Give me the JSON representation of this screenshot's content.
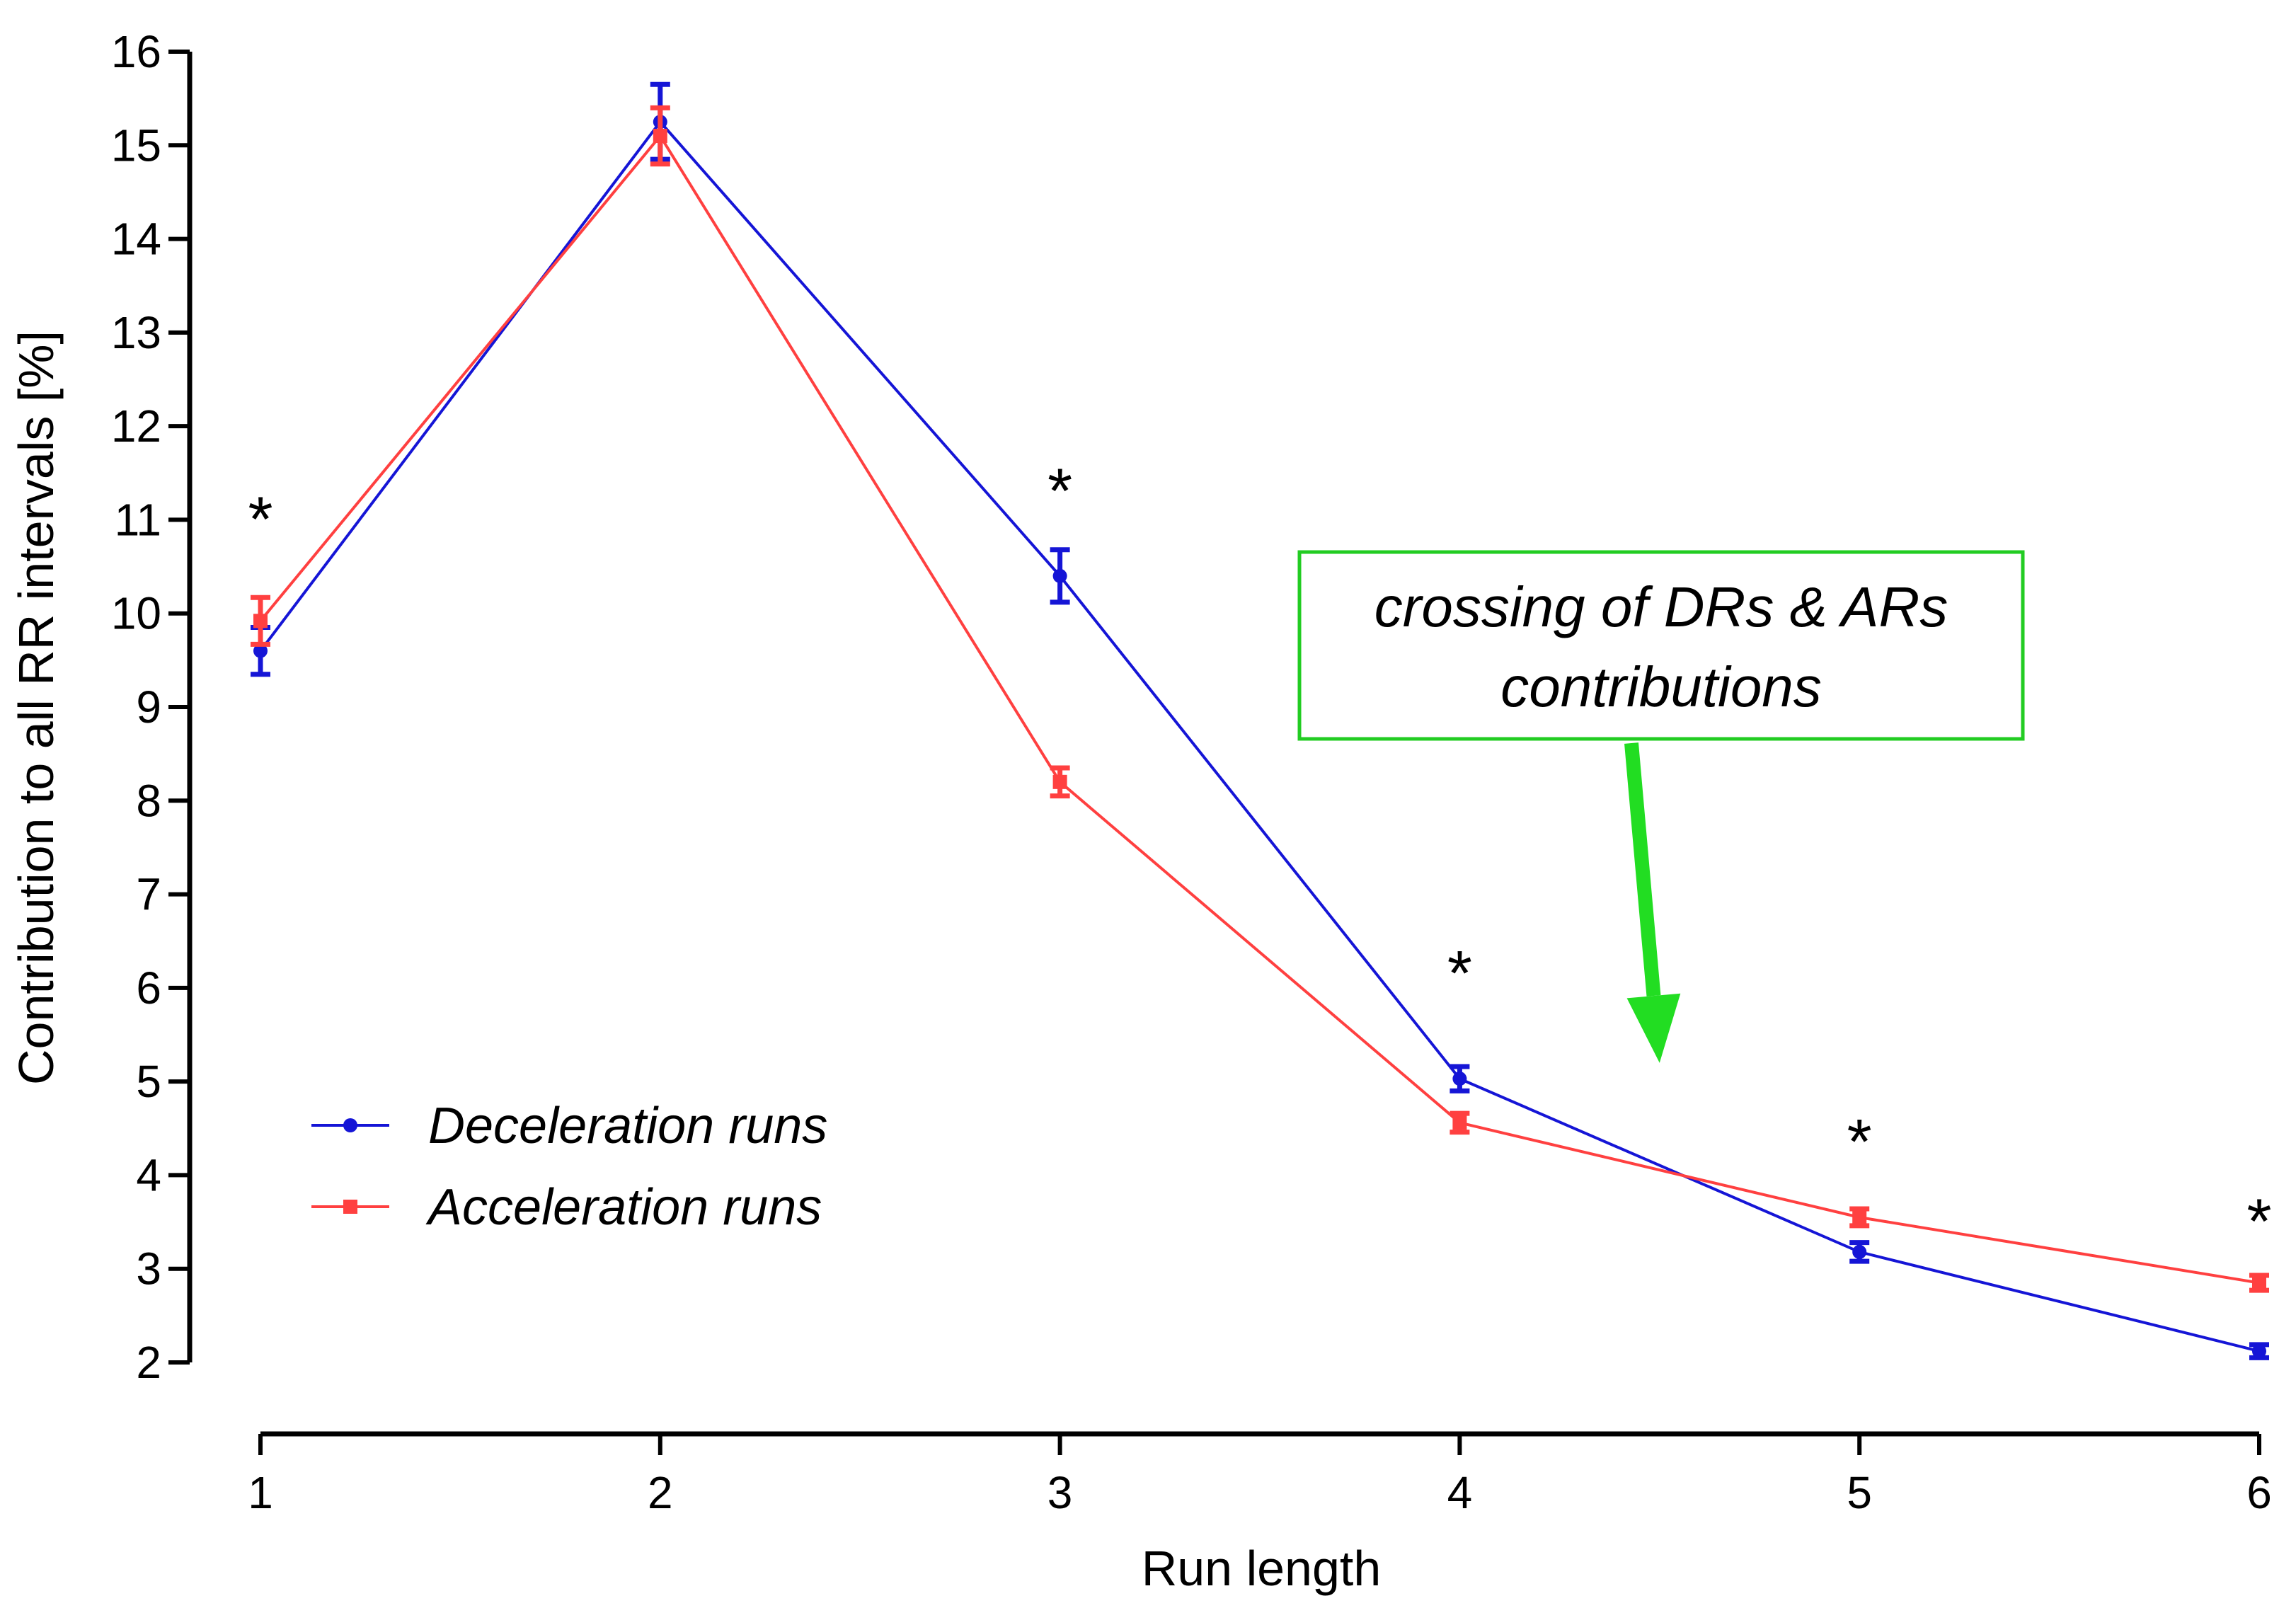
{
  "chart_data": {
    "type": "line",
    "xlabel": "Run length",
    "ylabel": "Contribution to all RR intervals [%]",
    "x": [
      1,
      2,
      3,
      4,
      5,
      6
    ],
    "xlim": [
      1,
      6
    ],
    "ylim": [
      2,
      16
    ],
    "xticks": [
      "1",
      "2",
      "3",
      "4",
      "5",
      "6"
    ],
    "yticks": [
      "2",
      "3",
      "4",
      "5",
      "6",
      "7",
      "8",
      "9",
      "10",
      "11",
      "12",
      "13",
      "14",
      "15",
      "16"
    ],
    "grid": false,
    "legend_position": "bottom-left",
    "series": [
      {
        "name": "Deceleration runs",
        "color": "#1515d6",
        "marker": "circle",
        "values": [
          9.6,
          15.25,
          10.4,
          5.03,
          3.18,
          2.12
        ],
        "error": [
          0.25,
          0.4,
          0.28,
          0.13,
          0.1,
          0.07
        ]
      },
      {
        "name": "Acceleration runs",
        "color": "#ff4040",
        "marker": "square",
        "values": [
          9.92,
          15.1,
          8.2,
          4.56,
          3.55,
          2.85
        ],
        "error": [
          0.25,
          0.3,
          0.15,
          0.1,
          0.09,
          0.08
        ]
      }
    ],
    "significance": {
      "symbol": "*",
      "positions": [
        {
          "x": 1,
          "y": 11.0
        },
        {
          "x": 3,
          "y": 11.3
        },
        {
          "x": 4,
          "y": 6.15
        },
        {
          "x": 5,
          "y": 4.35
        },
        {
          "x": 6,
          "y": 3.5
        }
      ]
    },
    "annotation": {
      "lines": [
        "crossing of DRs & ARs",
        "contributions"
      ],
      "box_color": "#22cc22",
      "arrow_color": "#22dd22",
      "arrow_target": {
        "x": 4.5,
        "y": 5.2
      }
    }
  }
}
